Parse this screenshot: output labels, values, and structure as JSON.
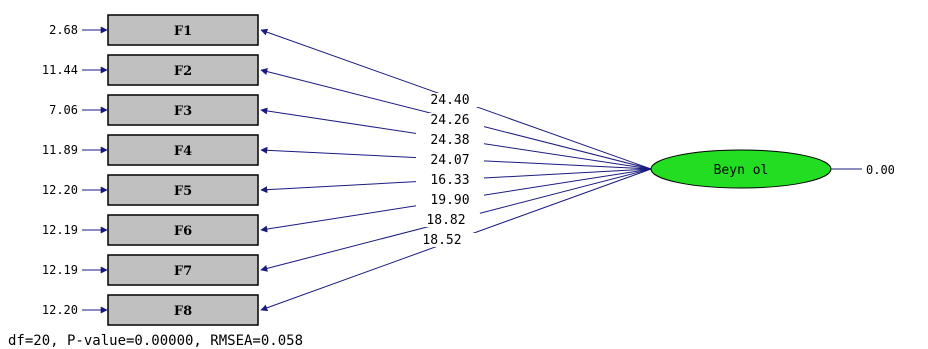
{
  "observed": [
    {
      "label": "F1",
      "error": "2.68",
      "loading": "24.40"
    },
    {
      "label": "F2",
      "error": "11.44",
      "loading": "24.26"
    },
    {
      "label": "F3",
      "error": "7.06",
      "loading": "24.38"
    },
    {
      "label": "F4",
      "error": "11.89",
      "loading": "24.07"
    },
    {
      "label": "F5",
      "error": "12.20",
      "loading": "16.33"
    },
    {
      "label": "F6",
      "error": "12.19",
      "loading": "19.90"
    },
    {
      "label": "F7",
      "error": "12.19",
      "loading": "18.82"
    },
    {
      "label": "F8",
      "error": "12.20",
      "loading": "18.52"
    }
  ],
  "latent": {
    "label": "Beyn ol",
    "variance": "0.00",
    "fill": "#22dd22"
  },
  "colors": {
    "path": "#1a1a80",
    "box": "#c0c0c0"
  },
  "fit": "df=20,  P-value=0.00000,  RMSEA=0.058"
}
